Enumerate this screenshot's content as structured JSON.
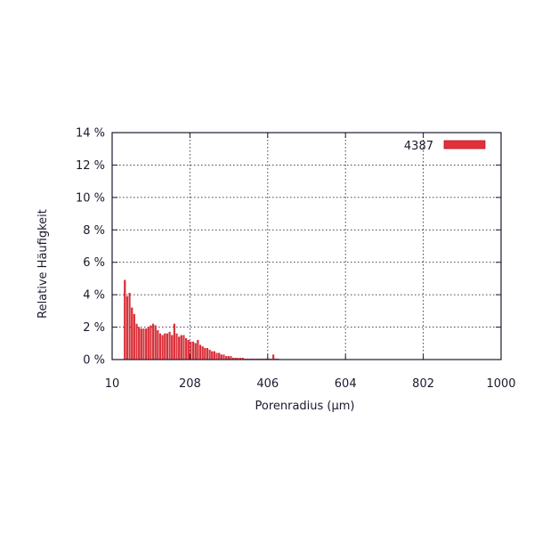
{
  "chart_data": {
    "type": "bar",
    "xlabel": "Porenradius (µm)",
    "ylabel": "Relative Häufigkeit",
    "xlim": [
      10,
      1000
    ],
    "ylim": [
      0,
      14
    ],
    "xticks": [
      "10",
      "208",
      "406",
      "604",
      "802",
      "1000"
    ],
    "yticks": [
      "0 %",
      "2 %",
      "4 %",
      "6 %",
      "8 %",
      "10 %",
      "12 %",
      "14 %"
    ],
    "grid": true,
    "legend_position": "top-right",
    "bar_width": 5.5,
    "series": [
      {
        "name": "4387",
        "color": "#e0303a",
        "x": [
          43,
          49,
          55,
          61,
          67,
          73,
          79,
          85,
          91,
          97,
          103,
          109,
          115,
          121,
          127,
          133,
          139,
          145,
          151,
          157,
          163,
          169,
          175,
          181,
          187,
          193,
          199,
          205,
          211,
          217,
          223,
          229,
          235,
          241,
          247,
          253,
          259,
          265,
          271,
          277,
          283,
          289,
          295,
          301,
          307,
          313,
          319,
          325,
          331,
          337,
          343,
          349,
          355,
          361,
          367,
          373,
          379,
          385,
          391,
          397,
          403,
          409,
          415,
          421,
          427,
          433
        ],
        "values": [
          4.9,
          3.9,
          4.1,
          3.2,
          2.8,
          2.2,
          2.0,
          1.9,
          1.9,
          1.9,
          2.0,
          2.1,
          2.2,
          2.1,
          1.8,
          1.6,
          1.5,
          1.6,
          1.6,
          1.7,
          1.5,
          2.2,
          1.6,
          1.4,
          1.5,
          1.5,
          1.3,
          1.2,
          1.1,
          1.1,
          1.0,
          1.2,
          0.9,
          0.8,
          0.7,
          0.7,
          0.6,
          0.5,
          0.5,
          0.4,
          0.4,
          0.3,
          0.3,
          0.2,
          0.2,
          0.2,
          0.1,
          0.1,
          0.1,
          0.1,
          0.1,
          0.05,
          0.05,
          0.05,
          0.05,
          0.05,
          0.05,
          0.05,
          0.05,
          0.05,
          0.05,
          0.05,
          0.05,
          0.3,
          0.05,
          0.05
        ]
      }
    ]
  }
}
